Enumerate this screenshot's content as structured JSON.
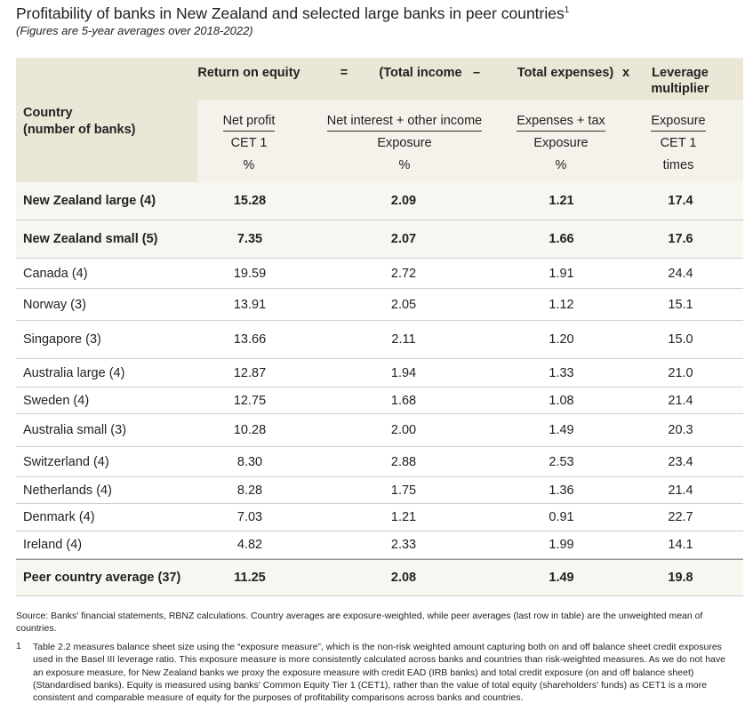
{
  "header": {
    "title": "Profitability of banks in New Zealand and selected large banks in peer countries",
    "title_note": "1",
    "subtitle": "(Figures are 5-year averages over 2018-2022)"
  },
  "table": {
    "top_header": [
      "Return on equity",
      "=",
      "(Total income",
      "–",
      "Total expenses)",
      "x",
      "Leverage multiplier"
    ],
    "country_header": [
      "Country",
      "(number of banks)"
    ],
    "fractions": [
      [
        "Net profit",
        "CET 1",
        "%"
      ],
      [
        "Net interest + other income",
        "Exposure",
        "%"
      ],
      [
        "Expenses + tax",
        "Exposure",
        "%"
      ],
      [
        "Exposure",
        "CET 1",
        "times"
      ]
    ],
    "rows": [
      [
        "New Zealand large (4)",
        "15.28",
        "2.09",
        "1.21",
        "17.4"
      ],
      [
        "New Zealand small (5)",
        "7.35",
        "2.07",
        "1.66",
        "17.6"
      ],
      [
        "Canada (4)",
        "19.59",
        "2.72",
        "1.91",
        "24.4"
      ],
      [
        "Norway (3)",
        "13.91",
        "2.05",
        "1.12",
        "15.1"
      ],
      [
        "Singapore (3)",
        "13.66",
        "2.11",
        "1.20",
        "15.0"
      ],
      [
        "Australia large (4)",
        "12.87",
        "1.94",
        "1.33",
        "21.0"
      ],
      [
        "Sweden (4)",
        "12.75",
        "1.68",
        "1.08",
        "21.4"
      ],
      [
        "Australia small (3)",
        "10.28",
        "2.00",
        "1.49",
        "20.3"
      ],
      [
        "Switzerland (4)",
        "8.30",
        "2.88",
        "2.53",
        "23.4"
      ],
      [
        "Netherlands (4)",
        "8.28",
        "1.75",
        "1.36",
        "21.4"
      ],
      [
        "Denmark (4)",
        "7.03",
        "1.21",
        "0.91",
        "22.7"
      ],
      [
        "Ireland (4)",
        "4.82",
        "2.33",
        "1.99",
        "14.1"
      ],
      [
        "Peer country average (37)",
        "11.25",
        "2.08",
        "1.49",
        "19.8"
      ]
    ]
  },
  "footer": {
    "source": "Source: Banks' financial statements, RBNZ calculations. Country averages are exposure-weighted, while peer averages (last row in table) are the unweighted mean of countries.",
    "note_number": "1",
    "note": "Table 2.2 measures balance sheet size using the “exposure measure”, which is the non-risk weighted amount capturing both on and off balance sheet credit exposures used in the Basel III leverage ratio. This exposure measure is more consistently calculated across banks and countries than risk-weighted measures. As we do not have an exposure measure, for New Zealand banks we proxy the exposure measure with credit EAD (IRB banks) and total credit exposure (on and off balance sheet) (Standardised banks). Equity is measured using banks' Common Equity Tier 1 (CET1), rather than the value of total equity (shareholders' funds) as CET1 is a more consistent and comparable measure of equity for the purposes of profitability comparisons across banks and countries."
  }
}
